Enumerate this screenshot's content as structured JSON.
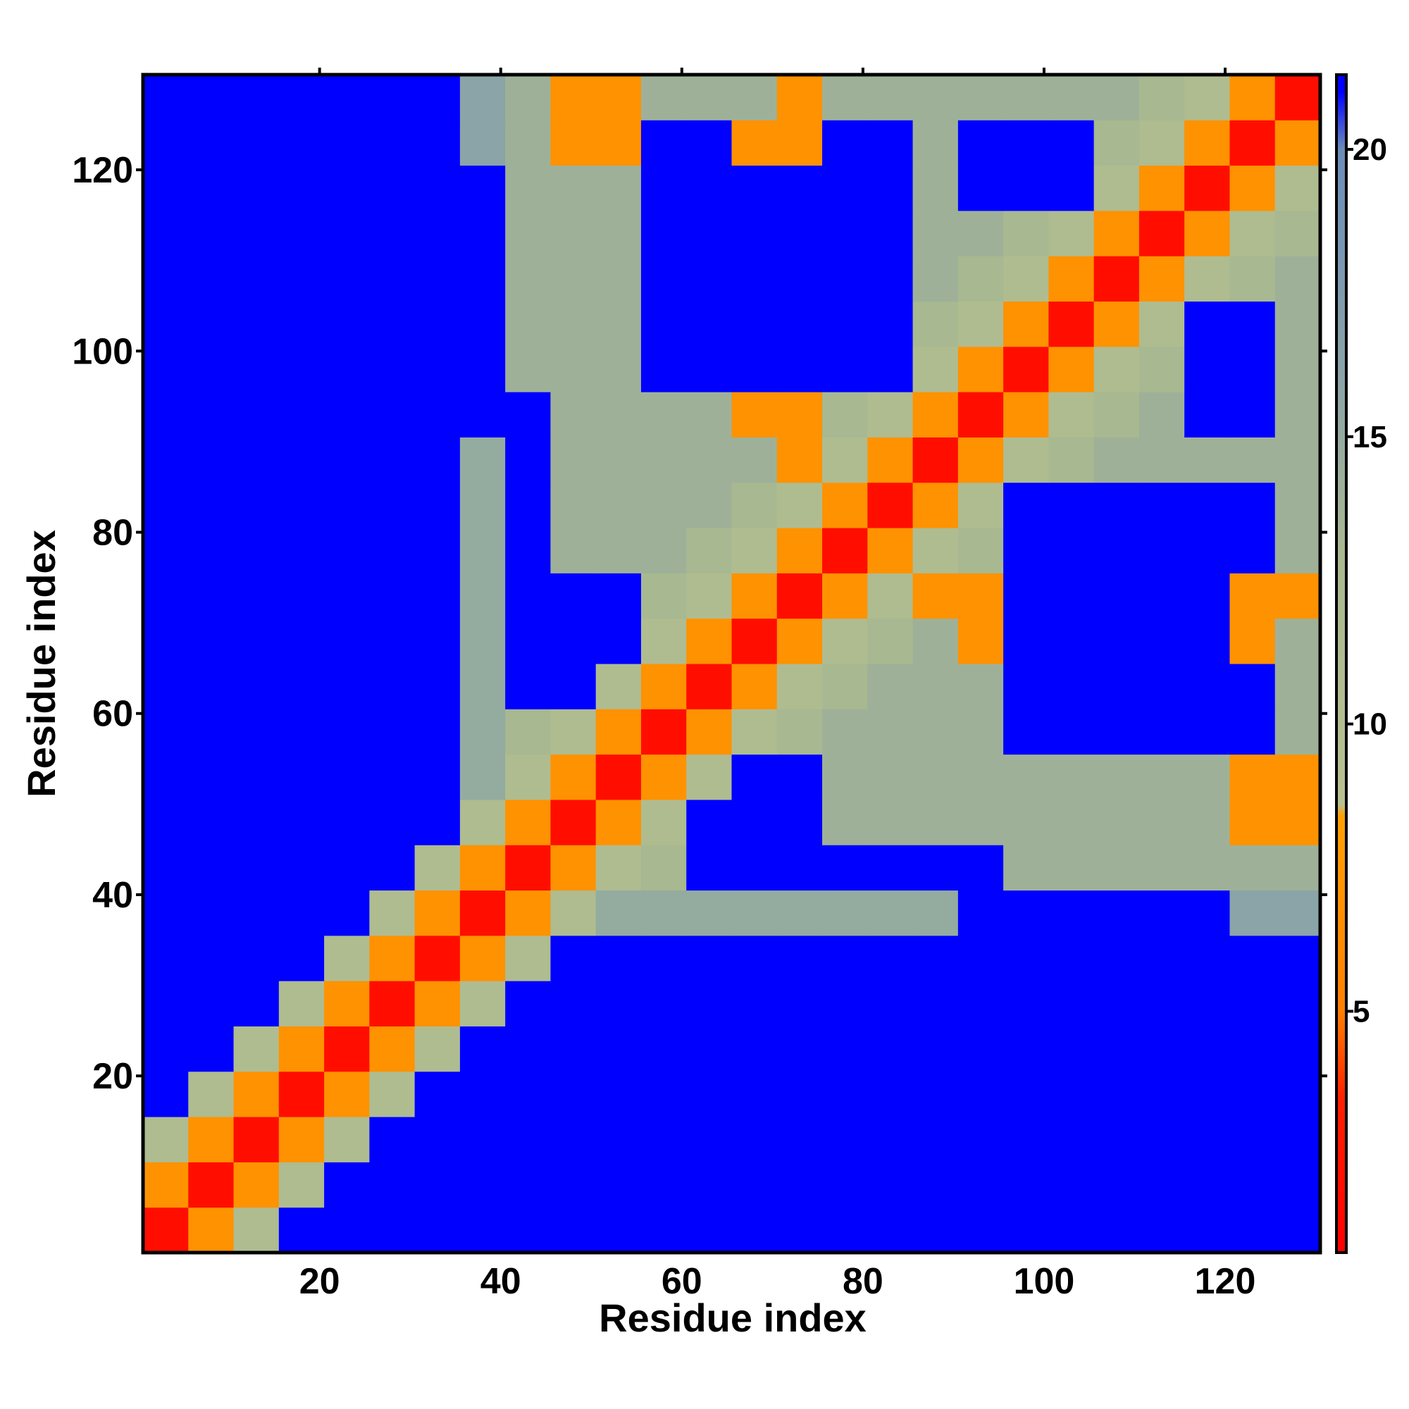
{
  "chart_data": {
    "type": "heatmap",
    "x_label": "Residue index",
    "y_label": "Residue index",
    "x": [
      3,
      8,
      13,
      18,
      23,
      28,
      33,
      38,
      43,
      48,
      53,
      58,
      63,
      68,
      73,
      78,
      83,
      88,
      93,
      98,
      103,
      108,
      113,
      118,
      123,
      128
    ],
    "y": [
      3,
      8,
      13,
      18,
      23,
      28,
      33,
      38,
      43,
      48,
      53,
      58,
      63,
      68,
      73,
      78,
      83,
      88,
      93,
      98,
      103,
      108,
      113,
      118,
      123,
      128
    ],
    "xlim": [
      0.5,
      130.5
    ],
    "ylim": [
      0.5,
      130.5
    ],
    "xticks": [
      20,
      40,
      60,
      80,
      100,
      120
    ],
    "yticks": [
      20,
      40,
      60,
      80,
      100,
      120
    ],
    "zlim": [
      0.8,
      21.3
    ],
    "zticks": [
      5,
      10,
      15,
      20
    ],
    "colorscale": [
      [
        0.8,
        "#ff0000"
      ],
      [
        3.5,
        "#ff2000"
      ],
      [
        5,
        "#ff7f00"
      ],
      [
        8.4,
        "#ffa000"
      ],
      [
        8.6,
        "#b8c090"
      ],
      [
        13,
        "#a8b890"
      ],
      [
        16,
        "#8aa4a8"
      ],
      [
        20,
        "#6b8cb8"
      ],
      [
        21,
        "#0000ff"
      ],
      [
        21.3,
        "#0000ff"
      ]
    ],
    "z": [
      [
        2,
        7,
        11,
        21,
        21,
        21,
        21,
        21,
        21,
        21,
        21,
        21,
        21,
        21,
        21,
        21,
        21,
        21,
        21,
        21,
        21,
        21,
        21,
        21,
        21,
        21
      ],
      [
        7,
        2,
        7,
        11,
        21,
        21,
        21,
        21,
        21,
        21,
        21,
        21,
        21,
        21,
        21,
        21,
        21,
        21,
        21,
        21,
        21,
        21,
        21,
        21,
        21,
        21
      ],
      [
        11,
        7,
        2,
        7,
        11,
        21,
        21,
        21,
        21,
        21,
        21,
        21,
        21,
        21,
        21,
        21,
        21,
        21,
        21,
        21,
        21,
        21,
        21,
        21,
        21,
        21
      ],
      [
        21,
        11,
        7,
        2,
        7,
        11,
        21,
        21,
        21,
        21,
        21,
        21,
        21,
        21,
        21,
        21,
        21,
        21,
        21,
        21,
        21,
        21,
        21,
        21,
        21,
        21
      ],
      [
        21,
        21,
        11,
        7,
        2,
        7,
        11,
        21,
        21,
        21,
        21,
        21,
        21,
        21,
        21,
        21,
        21,
        21,
        21,
        21,
        21,
        21,
        21,
        21,
        21,
        21
      ],
      [
        21,
        21,
        21,
        11,
        7,
        2,
        7,
        11,
        21,
        21,
        21,
        21,
        21,
        21,
        21,
        21,
        21,
        21,
        21,
        21,
        21,
        21,
        21,
        21,
        21,
        21
      ],
      [
        21,
        21,
        21,
        21,
        11,
        7,
        2,
        7,
        11,
        21,
        21,
        21,
        21,
        21,
        21,
        21,
        21,
        21,
        21,
        21,
        21,
        21,
        21,
        21,
        21,
        21
      ],
      [
        21,
        21,
        21,
        21,
        21,
        11,
        7,
        2,
        7,
        11,
        15,
        15,
        15,
        15,
        15,
        15,
        15,
        15,
        21,
        21,
        21,
        21,
        21,
        21,
        16,
        16
      ],
      [
        21,
        21,
        21,
        21,
        21,
        21,
        11,
        7,
        2,
        7,
        11,
        13,
        21,
        21,
        21,
        21,
        21,
        21,
        21,
        14,
        14,
        14,
        14,
        14,
        14,
        14
      ],
      [
        21,
        21,
        21,
        21,
        21,
        21,
        21,
        11,
        7,
        2,
        7,
        11,
        21,
        21,
        21,
        14,
        14,
        14,
        14,
        14,
        14,
        14,
        14,
        14,
        7,
        7
      ],
      [
        21,
        21,
        21,
        21,
        21,
        21,
        21,
        15,
        11,
        7,
        2,
        7,
        11,
        21,
        21,
        14,
        14,
        14,
        14,
        14,
        14,
        14,
        14,
        14,
        7,
        7
      ],
      [
        21,
        21,
        21,
        21,
        21,
        21,
        21,
        15,
        13,
        11,
        7,
        2,
        7,
        11,
        13,
        14,
        14,
        14,
        14,
        21,
        21,
        21,
        21,
        21,
        21,
        14
      ],
      [
        21,
        21,
        21,
        21,
        21,
        21,
        21,
        15,
        21,
        21,
        11,
        7,
        2,
        7,
        11,
        13,
        14,
        14,
        14,
        21,
        21,
        21,
        21,
        21,
        21,
        14
      ],
      [
        21,
        21,
        21,
        21,
        21,
        21,
        21,
        15,
        21,
        21,
        21,
        11,
        7,
        2,
        7,
        11,
        13,
        14,
        7,
        21,
        21,
        21,
        21,
        21,
        7,
        14
      ],
      [
        21,
        21,
        21,
        21,
        21,
        21,
        21,
        15,
        21,
        21,
        21,
        13,
        11,
        7,
        2,
        7,
        11,
        7,
        7,
        21,
        21,
        21,
        21,
        21,
        7,
        7
      ],
      [
        21,
        21,
        21,
        21,
        21,
        21,
        21,
        15,
        21,
        14,
        14,
        14,
        13,
        11,
        7,
        2,
        7,
        11,
        13,
        21,
        21,
        21,
        21,
        21,
        21,
        14
      ],
      [
        21,
        21,
        21,
        21,
        21,
        21,
        21,
        15,
        21,
        14,
        14,
        14,
        14,
        13,
        11,
        7,
        2,
        7,
        11,
        21,
        21,
        21,
        21,
        21,
        21,
        14
      ],
      [
        21,
        21,
        21,
        21,
        21,
        21,
        21,
        15,
        21,
        14,
        14,
        14,
        14,
        14,
        7,
        11,
        7,
        2,
        7,
        11,
        13,
        14,
        14,
        14,
        14,
        14
      ],
      [
        21,
        21,
        21,
        21,
        21,
        21,
        21,
        21,
        21,
        14,
        14,
        14,
        14,
        7,
        7,
        13,
        11,
        7,
        2,
        7,
        11,
        13,
        14,
        21,
        21,
        14
      ],
      [
        21,
        21,
        21,
        21,
        21,
        21,
        21,
        21,
        14,
        14,
        14,
        21,
        21,
        21,
        21,
        21,
        21,
        11,
        7,
        2,
        7,
        11,
        13,
        21,
        21,
        14
      ],
      [
        21,
        21,
        21,
        21,
        21,
        21,
        21,
        21,
        14,
        14,
        14,
        21,
        21,
        21,
        21,
        21,
        21,
        13,
        11,
        7,
        2,
        7,
        11,
        21,
        21,
        14
      ],
      [
        21,
        21,
        21,
        21,
        21,
        21,
        21,
        21,
        14,
        14,
        14,
        21,
        21,
        21,
        21,
        21,
        21,
        14,
        13,
        11,
        7,
        2,
        7,
        11,
        13,
        14
      ],
      [
        21,
        21,
        21,
        21,
        21,
        21,
        21,
        21,
        14,
        14,
        14,
        21,
        21,
        21,
        21,
        21,
        21,
        14,
        14,
        13,
        11,
        7,
        2,
        7,
        11,
        13
      ],
      [
        21,
        21,
        21,
        21,
        21,
        21,
        21,
        21,
        14,
        14,
        14,
        21,
        21,
        21,
        21,
        21,
        21,
        14,
        21,
        21,
        21,
        11,
        7,
        2,
        7,
        11
      ],
      [
        21,
        21,
        21,
        21,
        21,
        21,
        21,
        16,
        14,
        7,
        7,
        21,
        21,
        7,
        7,
        21,
        21,
        14,
        21,
        21,
        21,
        13,
        11,
        7,
        2,
        7
      ],
      [
        21,
        21,
        21,
        21,
        21,
        21,
        21,
        16,
        14,
        7,
        7,
        14,
        14,
        14,
        7,
        14,
        14,
        14,
        14,
        14,
        14,
        14,
        13,
        11,
        7,
        2
      ]
    ]
  }
}
